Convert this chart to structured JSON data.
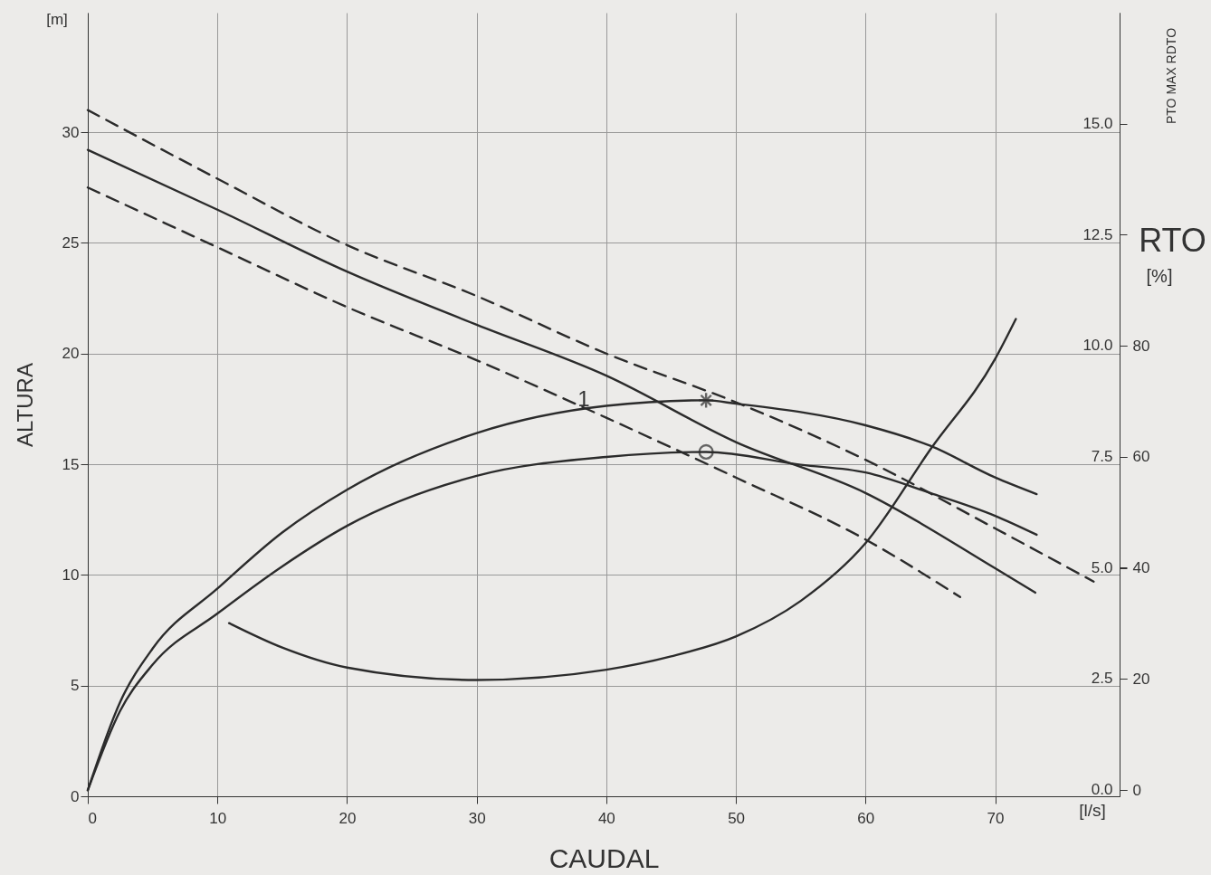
{
  "chart_data": {
    "type": "line",
    "xlabel": "CAUDAL",
    "ylabel": "ALTURA",
    "y3label": "RTO",
    "annotations": [
      "[m]",
      "[l/s]",
      "[%]",
      "PTO MAX RDTO",
      {
        "text": "1",
        "x": 39.1,
        "y": 17.6
      }
    ],
    "xlim": [
      0,
      79.6
    ],
    "xticks": [
      0,
      10,
      20,
      30,
      40,
      50,
      60,
      70
    ],
    "ylim": [
      0,
      35.4
    ],
    "yticks": [
      0,
      5,
      10,
      15,
      20,
      25,
      30
    ],
    "y2lim": [
      -0.15,
      17.5
    ],
    "y2ticks": [
      {
        "value": 0,
        "label": "0.0"
      },
      2.5,
      {
        "value": 5,
        "label": "5.0"
      },
      7.5,
      {
        "value": 10,
        "label": "10.0"
      },
      12.5,
      {
        "value": 15,
        "label": "15.0"
      }
    ],
    "y3lim": [
      -1.1,
      140
    ],
    "y3ticks": [
      0,
      20,
      40,
      60,
      80
    ],
    "grid": true,
    "series": [
      {
        "axis": "y",
        "color": "#2b2b2b",
        "line_style": "solid",
        "x": [
          0,
          10,
          20,
          30,
          40,
          50,
          60,
          70,
          73.1
        ],
        "values": [
          29.2,
          26.5,
          23.7,
          21.3,
          19.0,
          16.0,
          13.7,
          10.3,
          9.2
        ]
      },
      {
        "axis": "y",
        "color": "#2b2b2b",
        "line_style": "dashed",
        "x": [
          0,
          10,
          20,
          30,
          40,
          50,
          60,
          70,
          77.6
        ],
        "values": [
          31.0,
          27.9,
          24.9,
          22.6,
          20.0,
          17.8,
          15.2,
          12.1,
          9.7
        ]
      },
      {
        "axis": "y",
        "color": "#2b2b2b",
        "line_style": "dashed",
        "x": [
          0,
          10,
          20,
          30,
          40,
          50,
          60,
          67.3
        ],
        "values": [
          27.5,
          24.8,
          22.1,
          19.7,
          17.1,
          14.4,
          11.6,
          9.0
        ]
      },
      {
        "axis": "y2",
        "color": "#2b2b2b",
        "line_style": "solid",
        "x": [
          10.9,
          15,
          20,
          30,
          40,
          45,
          50,
          55,
          60,
          65,
          70,
          71.6
        ],
        "values": [
          3.75,
          3.2,
          2.75,
          2.47,
          2.7,
          3.0,
          3.45,
          4.25,
          5.55,
          7.66,
          9.7,
          10.6
        ]
      },
      {
        "axis": "y3",
        "color": "#2b2b2b",
        "line_style": "solid",
        "x": [
          0,
          2.5,
          5,
          10,
          15,
          20,
          30,
          40,
          47.7,
          50,
          60,
          65,
          70,
          73.2
        ],
        "values": [
          0,
          15.9,
          25.5,
          36.3,
          46.4,
          54.1,
          64.3,
          69.2,
          70.2,
          69.6,
          65.7,
          62,
          56.3,
          53.3
        ]
      },
      {
        "axis": "y3",
        "color": "#2b2b2b",
        "line_style": "solid",
        "x": [
          0,
          2.5,
          5,
          10,
          15,
          20,
          30,
          40,
          47.7,
          55,
          60,
          65,
          70,
          73.2
        ],
        "values": [
          0,
          14.3,
          22.6,
          31.8,
          40.3,
          47.6,
          56.6,
          60.0,
          60.9,
          58.6,
          57.2,
          53.5,
          49.4,
          46.0
        ]
      },
      {
        "type": "scatter",
        "axis": "y3",
        "color": "#2b2b2b",
        "marker": "cross",
        "x": [
          47.7
        ],
        "values": [
          70.2
        ]
      },
      {
        "type": "scatter",
        "axis": "y3",
        "color": "#2b2b2b",
        "marker": "circle",
        "x": [
          47.7
        ],
        "values": [
          60.9
        ]
      }
    ]
  }
}
